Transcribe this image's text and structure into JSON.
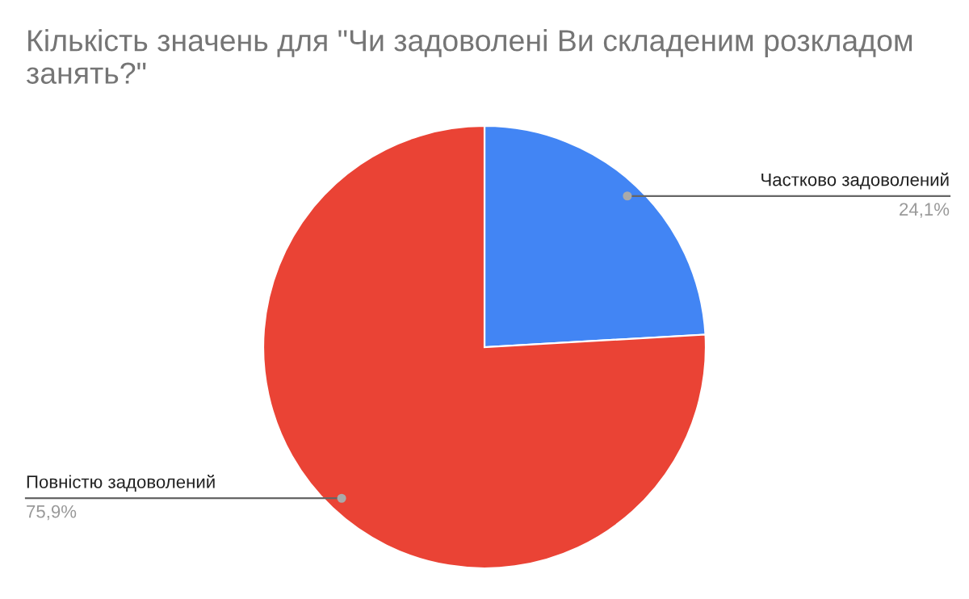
{
  "chart_data": {
    "type": "pie",
    "title": "Кількість значень для \"Чи задоволені Ви складеним розкладом занять?\"",
    "categories": [
      "Частково задоволений",
      "Повністю задоволений"
    ],
    "values": [
      24.1,
      75.9
    ],
    "value_labels": [
      "24,1%",
      "75,9%"
    ],
    "colors": [
      "#4285f4",
      "#ea4335"
    ],
    "legend": false
  }
}
